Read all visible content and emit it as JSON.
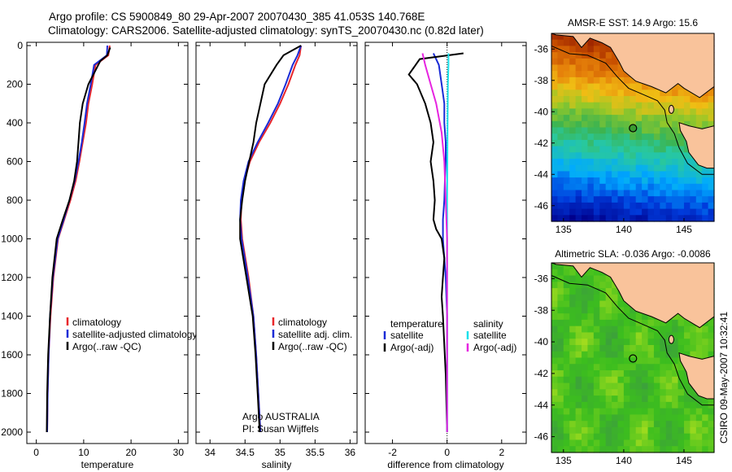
{
  "header": {
    "line1": "Argo profile: CS 5900849_80 29-Apr-2007 20070430_385 41.053S 140.768E",
    "line2": "Climatology: CARS2006. Satellite-adjusted climatology: synTS_20070430.nc (0.82d later)"
  },
  "side_stamp": "CSIRO 09-May-2007 10:32:41",
  "colors": {
    "climatology": "#e8262b",
    "satellite": "#1a2bd6",
    "argo": "#000000",
    "satellite_salinity": "#19e0ea",
    "argo_salinity": "#e624e0",
    "land": "#f9c39b"
  },
  "chart_data": [
    {
      "type": "line",
      "panel": "temperature",
      "xlabel": "temperature",
      "ylabel": "",
      "xlim": [
        -2,
        32
      ],
      "ylim": [
        2050,
        0
      ],
      "xticks": [
        0,
        10,
        20,
        30
      ],
      "yticks": [
        0,
        200,
        400,
        600,
        800,
        1000,
        1200,
        1400,
        1600,
        1800,
        2000
      ],
      "legend": [
        "climatology",
        "satellite-adjusted climatology",
        "Argo(..raw -QC)"
      ],
      "series": [
        {
          "name": "climatology",
          "color": "climatology",
          "x": [
            15.5,
            15.2,
            12.5,
            11.8,
            11.0,
            10.5,
            9.8,
            9.1,
            8.3,
            7.2,
            5.9,
            4.6,
            3.6,
            3.0,
            2.6,
            2.4,
            2.3
          ],
          "y": [
            0,
            50,
            100,
            200,
            300,
            400,
            500,
            600,
            700,
            800,
            900,
            1000,
            1200,
            1400,
            1600,
            1800,
            2000
          ]
        },
        {
          "name": "satellite-adjusted climatology",
          "color": "satellite",
          "x": [
            15.0,
            14.9,
            12.2,
            11.5,
            10.7,
            10.2,
            9.6,
            8.9,
            8.1,
            7.0,
            5.8,
            4.5,
            3.5,
            2.9,
            2.6,
            2.4,
            2.3
          ],
          "y": [
            0,
            50,
            100,
            200,
            300,
            400,
            500,
            600,
            700,
            800,
            900,
            1000,
            1200,
            1400,
            1600,
            1800,
            2000
          ]
        },
        {
          "name": "Argo(..raw -QC)",
          "color": "argo",
          "x": [
            15.6,
            15.0,
            13.5,
            11.0,
            9.8,
            9.2,
            8.9,
            8.6,
            8.0,
            7.0,
            5.6,
            4.3,
            3.4,
            2.9,
            2.5,
            2.3,
            2.2
          ],
          "y": [
            10,
            50,
            80,
            200,
            300,
            400,
            500,
            600,
            700,
            800,
            900,
            1000,
            1200,
            1400,
            1600,
            1800,
            2000
          ]
        }
      ]
    },
    {
      "type": "line",
      "panel": "salinity",
      "xlabel": "salinity",
      "ylabel": "",
      "xlim": [
        33.8,
        36.1
      ],
      "ylim": [
        2050,
        0
      ],
      "xticks": [
        34,
        34.5,
        35,
        35.5,
        36
      ],
      "xticklabels": [
        "34",
        "34.5",
        "35",
        "35.5",
        "36"
      ],
      "legend": [
        "climatology",
        "satellite adj. clim.",
        "Argo(..raw -QC)"
      ],
      "annotation": [
        "Argo AUSTRALIA",
        "PI: Susan Wijffels"
      ],
      "series": [
        {
          "name": "climatology",
          "color": "climatology",
          "x": [
            35.3,
            35.28,
            35.22,
            35.12,
            35.0,
            34.86,
            34.7,
            34.57,
            34.49,
            34.45,
            34.44,
            34.46,
            34.55,
            34.62,
            34.66,
            34.69,
            34.72
          ],
          "y": [
            0,
            50,
            100,
            200,
            300,
            400,
            500,
            600,
            700,
            800,
            900,
            1000,
            1200,
            1400,
            1600,
            1800,
            2000
          ]
        },
        {
          "name": "satellite adj. clim.",
          "color": "satellite",
          "x": [
            35.3,
            35.25,
            35.18,
            35.08,
            34.97,
            34.83,
            34.68,
            34.55,
            34.48,
            34.44,
            34.43,
            34.45,
            34.54,
            34.62,
            34.66,
            34.69,
            34.72
          ],
          "y": [
            0,
            50,
            100,
            200,
            300,
            400,
            500,
            600,
            700,
            800,
            900,
            1000,
            1200,
            1400,
            1600,
            1800,
            2000
          ]
        },
        {
          "name": "Argo(..raw -QC)",
          "color": "argo",
          "x": [
            35.3,
            35.05,
            34.95,
            34.78,
            34.72,
            34.66,
            34.62,
            34.56,
            34.5,
            34.46,
            34.43,
            34.43,
            34.52,
            34.61,
            34.65,
            34.68,
            34.71
          ],
          "y": [
            0,
            50,
            100,
            200,
            300,
            400,
            500,
            600,
            700,
            800,
            900,
            1000,
            1200,
            1400,
            1600,
            1800,
            2000
          ]
        }
      ]
    },
    {
      "type": "line",
      "panel": "difference",
      "xlabel": "difference from climatology",
      "ylabel": "",
      "xlim": [
        -3.0,
        2.9
      ],
      "ylim": [
        2050,
        0
      ],
      "xticks": [
        -2,
        0,
        2
      ],
      "legend_temperature_heading": "temperature",
      "legend_salinity_heading": "salinity",
      "legend": [
        "satellite",
        "Argo(-adj)",
        "satellite",
        "Argo(-adj)"
      ],
      "series": [
        {
          "name": "satellite",
          "color": "satellite",
          "x": [
            -0.5,
            -0.3,
            -0.2,
            -0.1,
            -0.1,
            -0.05,
            -0.05,
            -0.08,
            -0.1,
            -0.15,
            -0.15,
            -0.1,
            -0.05,
            0,
            0,
            0
          ],
          "y": [
            40,
            100,
            200,
            300,
            400,
            500,
            600,
            700,
            800,
            900,
            1000,
            1100,
            1200,
            1400,
            1700,
            2000
          ]
        },
        {
          "name": "Argo(-adj)",
          "color": "argo",
          "x": [
            0.6,
            -1.0,
            -1.4,
            -1.1,
            -0.8,
            -0.6,
            -0.5,
            -0.6,
            -0.5,
            -0.45,
            -0.5,
            -0.4,
            -0.2,
            -0.1,
            -0.15,
            -0.2,
            -0.15,
            -0.05,
            0.0
          ],
          "y": [
            40,
            70,
            150,
            200,
            300,
            400,
            500,
            600,
            700,
            800,
            900,
            950,
            1000,
            1100,
            1200,
            1300,
            1400,
            1700,
            2000
          ]
        },
        {
          "name": "satellite",
          "color": "satellite_salinity",
          "x": [
            0.05,
            0.05,
            0.03,
            0.02,
            0.01,
            0.0,
            0.0,
            0.0,
            0.0,
            0.0
          ],
          "y": [
            40,
            100,
            200,
            400,
            600,
            800,
            1000,
            1400,
            1700,
            2000
          ]
        },
        {
          "name": "Argo(-adj)",
          "color": "argo_salinity",
          "x": [
            -0.9,
            -0.8,
            -0.6,
            -0.4,
            -0.2,
            -0.1,
            -0.05,
            0.0,
            0.0,
            0.0
          ],
          "y": [
            40,
            100,
            200,
            300,
            450,
            600,
            800,
            1000,
            1400,
            2000
          ]
        }
      ]
    },
    {
      "type": "heatmap",
      "panel": "sst-map",
      "title": "AMSR-E SST: 14.9 Argo: 15.6",
      "xlim": [
        134,
        147.5
      ],
      "ylim": [
        -47,
        -35
      ],
      "xticks": [
        135,
        140,
        145
      ],
      "yticks": [
        -36,
        -38,
        -40,
        -42,
        -44,
        -46
      ],
      "float_position": {
        "lon": 140.768,
        "lat": -41.053
      }
    },
    {
      "type": "heatmap",
      "panel": "sla-map",
      "title": "Altimetric SLA: -0.036 Argo: -0.0086",
      "xlim": [
        134,
        147.5
      ],
      "ylim": [
        -47,
        -35
      ],
      "xticks": [
        135,
        140,
        145
      ],
      "yticks": [
        -36,
        -38,
        -40,
        -42,
        -44,
        -46
      ],
      "float_position": {
        "lon": 140.768,
        "lat": -41.053
      }
    }
  ]
}
